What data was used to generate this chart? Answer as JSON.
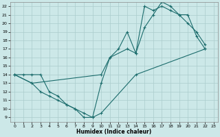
{
  "xlabel": "Humidex (Indice chaleur)",
  "bg_color": "#cce8e8",
  "grid_color": "#aacccc",
  "line_color": "#1a6b6b",
  "xlim": [
    -0.5,
    23.5
  ],
  "ylim": [
    8.5,
    22.5
  ],
  "xticks": [
    0,
    1,
    2,
    3,
    4,
    5,
    6,
    7,
    8,
    9,
    10,
    11,
    12,
    13,
    14,
    15,
    16,
    17,
    18,
    19,
    20,
    21,
    22,
    23
  ],
  "yticks": [
    9,
    10,
    11,
    12,
    13,
    14,
    15,
    16,
    17,
    18,
    19,
    20,
    21,
    22
  ],
  "line1_x": [
    0,
    1,
    2,
    3,
    4,
    5,
    6,
    7,
    8,
    9,
    10,
    14,
    22
  ],
  "line1_y": [
    14,
    14,
    14,
    14,
    12,
    11.5,
    10.5,
    10,
    9.5,
    9,
    9.5,
    14,
    17
  ],
  "line2_x": [
    0,
    2,
    3,
    4,
    5,
    6,
    7,
    8,
    9,
    10,
    11,
    13,
    14,
    15,
    16,
    17,
    18,
    19,
    20,
    21,
    22
  ],
  "line2_y": [
    14,
    13,
    12,
    11.5,
    11,
    10.5,
    10,
    9,
    9,
    13,
    16,
    17,
    16.5,
    19.5,
    21,
    22.5,
    22,
    21,
    20,
    19,
    17.5
  ],
  "line3_x": [
    0,
    2,
    10,
    11,
    12,
    13,
    14,
    15,
    16,
    17,
    18,
    19,
    20,
    21,
    22
  ],
  "line3_y": [
    14,
    13,
    14,
    16,
    17,
    19,
    16.5,
    22,
    21.5,
    22,
    21.5,
    21,
    21,
    18.5,
    17
  ]
}
